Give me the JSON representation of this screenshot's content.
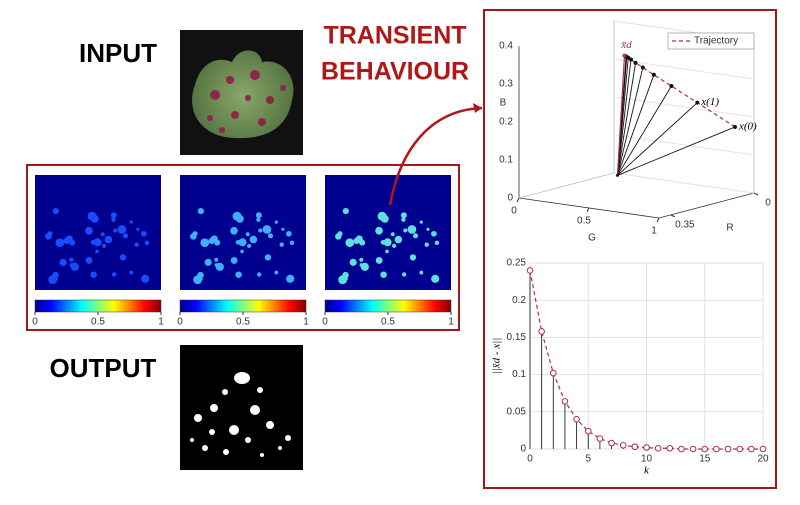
{
  "labels": {
    "input": "INPUT",
    "output": "OUTPUT",
    "transient": [
      "TRANSIENT",
      "BEHAVIOUR"
    ]
  },
  "colorbars": [
    {
      "ticks": [
        0,
        0.5,
        1
      ]
    },
    {
      "ticks": [
        0,
        0.5,
        1
      ]
    },
    {
      "ticks": [
        0,
        0.5,
        1
      ]
    }
  ],
  "plot3d": {
    "zlabel": "B",
    "xlabel": "G",
    "ylabel": "R",
    "blim": [
      0,
      0.4
    ],
    "bticks": [
      0,
      0.1,
      0.2,
      0.3,
      0.4
    ],
    "glim": [
      0,
      1
    ],
    "gticks": [
      0,
      0.5,
      1
    ],
    "rlim": [
      0.4,
      0
    ],
    "rticks": [
      0.35,
      0
    ],
    "legend": "Trajectory",
    "color": "#b03040",
    "origin": {
      "R": 0.28,
      "G": 0.5,
      "B": 0.066
    },
    "target": {
      "R": 0.28,
      "G": 0.55,
      "B": 0.384,
      "label": "x̄d"
    },
    "trajectory": {
      "R": [
        0.08,
        0.148,
        0.195,
        0.227,
        0.247,
        0.26,
        0.268,
        0.273,
        0.276,
        0.277
      ],
      "G": [
        1.0,
        0.846,
        0.741,
        0.67,
        0.625,
        0.595,
        0.576,
        0.565,
        0.559,
        0.556
      ],
      "B": [
        0.187,
        0.254,
        0.3,
        0.331,
        0.351,
        0.364,
        0.373,
        0.378,
        0.38,
        0.382
      ]
    },
    "annotations": [
      "x(0)",
      "x(1)"
    ]
  },
  "chart_data": {
    "type": "stem",
    "xlabel": "k",
    "ylabel": "||x̄d - x||",
    "x": [
      0,
      1,
      2,
      3,
      4,
      5,
      6,
      7,
      8,
      9,
      10,
      11,
      12,
      13,
      14,
      15,
      16,
      17,
      18,
      19,
      20
    ],
    "values": [
      0.24,
      0.158,
      0.102,
      0.064,
      0.04,
      0.024,
      0.014,
      0.008,
      0.005,
      0.003,
      0.002,
      0.001,
      0.001,
      0,
      0,
      0,
      0,
      0,
      0,
      0,
      0
    ],
    "color": "#b03040",
    "xlim": [
      0,
      20
    ],
    "xticks": [
      0,
      5,
      10,
      15,
      20
    ],
    "ylim": [
      0,
      0.25
    ],
    "yticks": [
      0,
      0.05,
      0.1,
      0.15,
      0.2,
      0.25
    ],
    "grid": true
  }
}
